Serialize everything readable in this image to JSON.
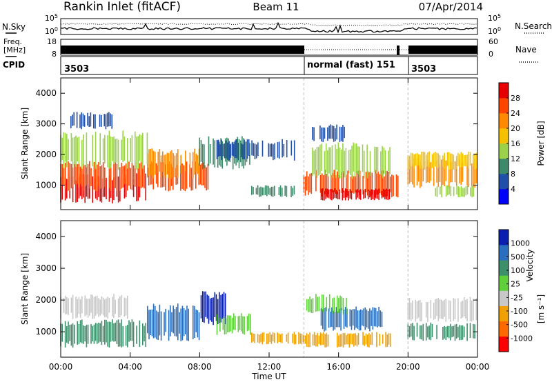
{
  "header": {
    "title": "Rankin Inlet (fitACF)",
    "beam": "Beam 11",
    "date": "07/Apr/2014"
  },
  "noise_panel": {
    "left_label": "N.Sky",
    "right_label": "N.Search",
    "left_ticks": [
      "10^5",
      "10^0"
    ],
    "right_ticks": [
      "10^5",
      "10^0"
    ]
  },
  "freq_panel": {
    "left_label_1": "Freq.",
    "left_label_2": "[MHz]",
    "right_label": "Nave",
    "left_ticks": [
      "18",
      "8"
    ],
    "right_ticks": [
      "60",
      "0"
    ]
  },
  "cpid_panel": {
    "label": "CPID",
    "segments": [
      {
        "start_hour": 0,
        "end_hour": 14,
        "label": "3503"
      },
      {
        "start_hour": 14,
        "end_hour": 20,
        "label": "normal (fast) 151"
      },
      {
        "start_hour": 20,
        "end_hour": 24,
        "label": "3503"
      }
    ]
  },
  "colors": {
    "power_scale": [
      "#0000ff",
      "#1f4fa8",
      "#3d8a6a",
      "#9bd24a",
      "#f5c000",
      "#ff8a00",
      "#ff4400",
      "#e60000"
    ],
    "velocity_scale": [
      "#0a1fb0",
      "#2a6fbf",
      "#3b8f6a",
      "#5fd03a",
      "#c8c8c8",
      "#f0a000",
      "#ff6a00",
      "#ff0000"
    ]
  },
  "chart_data": [
    {
      "type": "heatmap",
      "name": "Power",
      "ylabel": "Slant Range [km]",
      "colorbar_title": "Power [dB]",
      "colorbar_ticks": [
        "28",
        "24",
        "20",
        "16",
        "12",
        "8",
        "4"
      ],
      "xlim": [
        0,
        24
      ],
      "ylim": [
        200,
        4500
      ],
      "yticks": [
        1000,
        2000,
        3000,
        4000
      ],
      "regions": [
        {
          "x": [
            0.0,
            5.0
          ],
          "y": [
            400,
            1400
          ],
          "level": 7
        },
        {
          "x": [
            0.0,
            8.5
          ],
          "y": [
            800,
            1800
          ],
          "level": 6
        },
        {
          "x": [
            5.0,
            8.0
          ],
          "y": [
            1200,
            2200
          ],
          "level": 5
        },
        {
          "x": [
            0.0,
            5.0
          ],
          "y": [
            1500,
            2800
          ],
          "level": 3
        },
        {
          "x": [
            0.5,
            3.0
          ],
          "y": [
            2800,
            3400
          ],
          "level": 1
        },
        {
          "x": [
            8.0,
            11.0
          ],
          "y": [
            1500,
            2600
          ],
          "level": 2
        },
        {
          "x": [
            9.0,
            13.5
          ],
          "y": [
            1800,
            2500
          ],
          "level": 1
        },
        {
          "x": [
            11.0,
            13.5
          ],
          "y": [
            600,
            1000
          ],
          "level": 2
        },
        {
          "x": [
            14.0,
            19.5
          ],
          "y": [
            600,
            1500
          ],
          "level": 6
        },
        {
          "x": [
            15.0,
            19.0
          ],
          "y": [
            500,
            900
          ],
          "level": 7
        },
        {
          "x": [
            14.5,
            19.0
          ],
          "y": [
            1200,
            2400
          ],
          "level": 3
        },
        {
          "x": [
            14.5,
            16.5
          ],
          "y": [
            2400,
            3000
          ],
          "level": 1
        },
        {
          "x": [
            20.0,
            24.0
          ],
          "y": [
            900,
            1900
          ],
          "level": 5
        },
        {
          "x": [
            20.0,
            24.0
          ],
          "y": [
            1500,
            2100
          ],
          "level": 4
        },
        {
          "x": [
            21.5,
            24.0
          ],
          "y": [
            600,
            1000
          ],
          "level": 3
        }
      ]
    },
    {
      "type": "heatmap",
      "name": "Velocity",
      "ylabel": "Slant Range [km]",
      "xlabel": "Time UT",
      "colorbar_title": "Velocity",
      "colorbar_units": "[m s⁻¹]",
      "colorbar_ticks": [
        "1000",
        "500",
        "100",
        "25",
        "-25",
        "-100",
        "-500",
        "-1000"
      ],
      "xlim": [
        0,
        24
      ],
      "xticks": [
        "00:00",
        "04:00",
        "08:00",
        "12:00",
        "16:00",
        "20:00",
        "00:00"
      ],
      "ylim": [
        200,
        4500
      ],
      "yticks": [
        1000,
        2000,
        3000,
        4000
      ],
      "regions": [
        {
          "x": [
            0.0,
            5.0
          ],
          "y": [
            500,
            1400
          ],
          "level": 2
        },
        {
          "x": [
            0.0,
            4.0
          ],
          "y": [
            1400,
            2200
          ],
          "level": 4
        },
        {
          "x": [
            5.0,
            8.0
          ],
          "y": [
            700,
            1900
          ],
          "level": 1
        },
        {
          "x": [
            8.0,
            9.5
          ],
          "y": [
            1200,
            2300
          ],
          "level": 0
        },
        {
          "x": [
            9.0,
            11.0
          ],
          "y": [
            900,
            1600
          ],
          "level": 3
        },
        {
          "x": [
            11.0,
            14.0
          ],
          "y": [
            600,
            1000
          ],
          "level": 5
        },
        {
          "x": [
            14.0,
            19.0
          ],
          "y": [
            500,
            1000
          ],
          "level": 5
        },
        {
          "x": [
            15.0,
            18.5
          ],
          "y": [
            1000,
            1800
          ],
          "level": 1
        },
        {
          "x": [
            14.0,
            16.5
          ],
          "y": [
            1500,
            2200
          ],
          "level": 3
        },
        {
          "x": [
            20.0,
            24.0
          ],
          "y": [
            1300,
            2100
          ],
          "level": 4
        },
        {
          "x": [
            20.0,
            24.0
          ],
          "y": [
            700,
            1300
          ],
          "level": 2
        }
      ]
    }
  ]
}
